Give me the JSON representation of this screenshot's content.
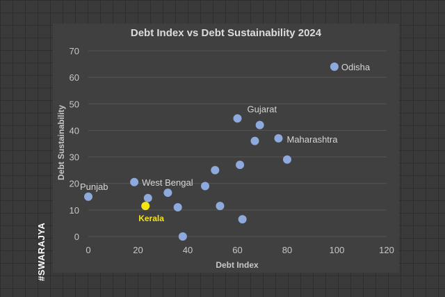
{
  "watermark": "#SWARAJYA",
  "chart_data": {
    "type": "scatter",
    "title": "Debt Index vs Debt Sustainability 2024",
    "xlabel": "Debt Index",
    "ylabel": "Debt Sustainability",
    "xlim": [
      0,
      120
    ],
    "ylim": [
      0,
      70
    ],
    "xticks": [
      0,
      20,
      40,
      60,
      80,
      100,
      120
    ],
    "yticks": [
      0,
      10,
      20,
      30,
      40,
      50,
      60,
      70
    ],
    "grid": "horizontal",
    "colors": {
      "point": "#8ea9db",
      "highlight": "#f5e613",
      "plot_bg": "#404040",
      "grid": "#555555"
    },
    "points": [
      {
        "x": 99,
        "y": 64,
        "label": "Odisha"
      },
      {
        "x": 60,
        "y": 44.5,
        "label": "Gujarat"
      },
      {
        "x": 69,
        "y": 42,
        "label": ""
      },
      {
        "x": 76.5,
        "y": 37,
        "label": "Maharashtra"
      },
      {
        "x": 67,
        "y": 36,
        "label": ""
      },
      {
        "x": 80,
        "y": 29,
        "label": ""
      },
      {
        "x": 61,
        "y": 27,
        "label": ""
      },
      {
        "x": 51,
        "y": 25,
        "label": ""
      },
      {
        "x": 18.5,
        "y": 20.5,
        "label": "West Bengal"
      },
      {
        "x": 47,
        "y": 19,
        "label": ""
      },
      {
        "x": 32,
        "y": 16.5,
        "label": ""
      },
      {
        "x": 0,
        "y": 15,
        "label": "Punjab"
      },
      {
        "x": 24,
        "y": 14.5,
        "label": ""
      },
      {
        "x": 53,
        "y": 11.5,
        "label": ""
      },
      {
        "x": 36,
        "y": 11,
        "label": ""
      },
      {
        "x": 23,
        "y": 11.5,
        "label": "Kerala",
        "highlight": true
      },
      {
        "x": 62,
        "y": 6.5,
        "label": ""
      },
      {
        "x": 38,
        "y": 0,
        "label": ""
      }
    ]
  }
}
